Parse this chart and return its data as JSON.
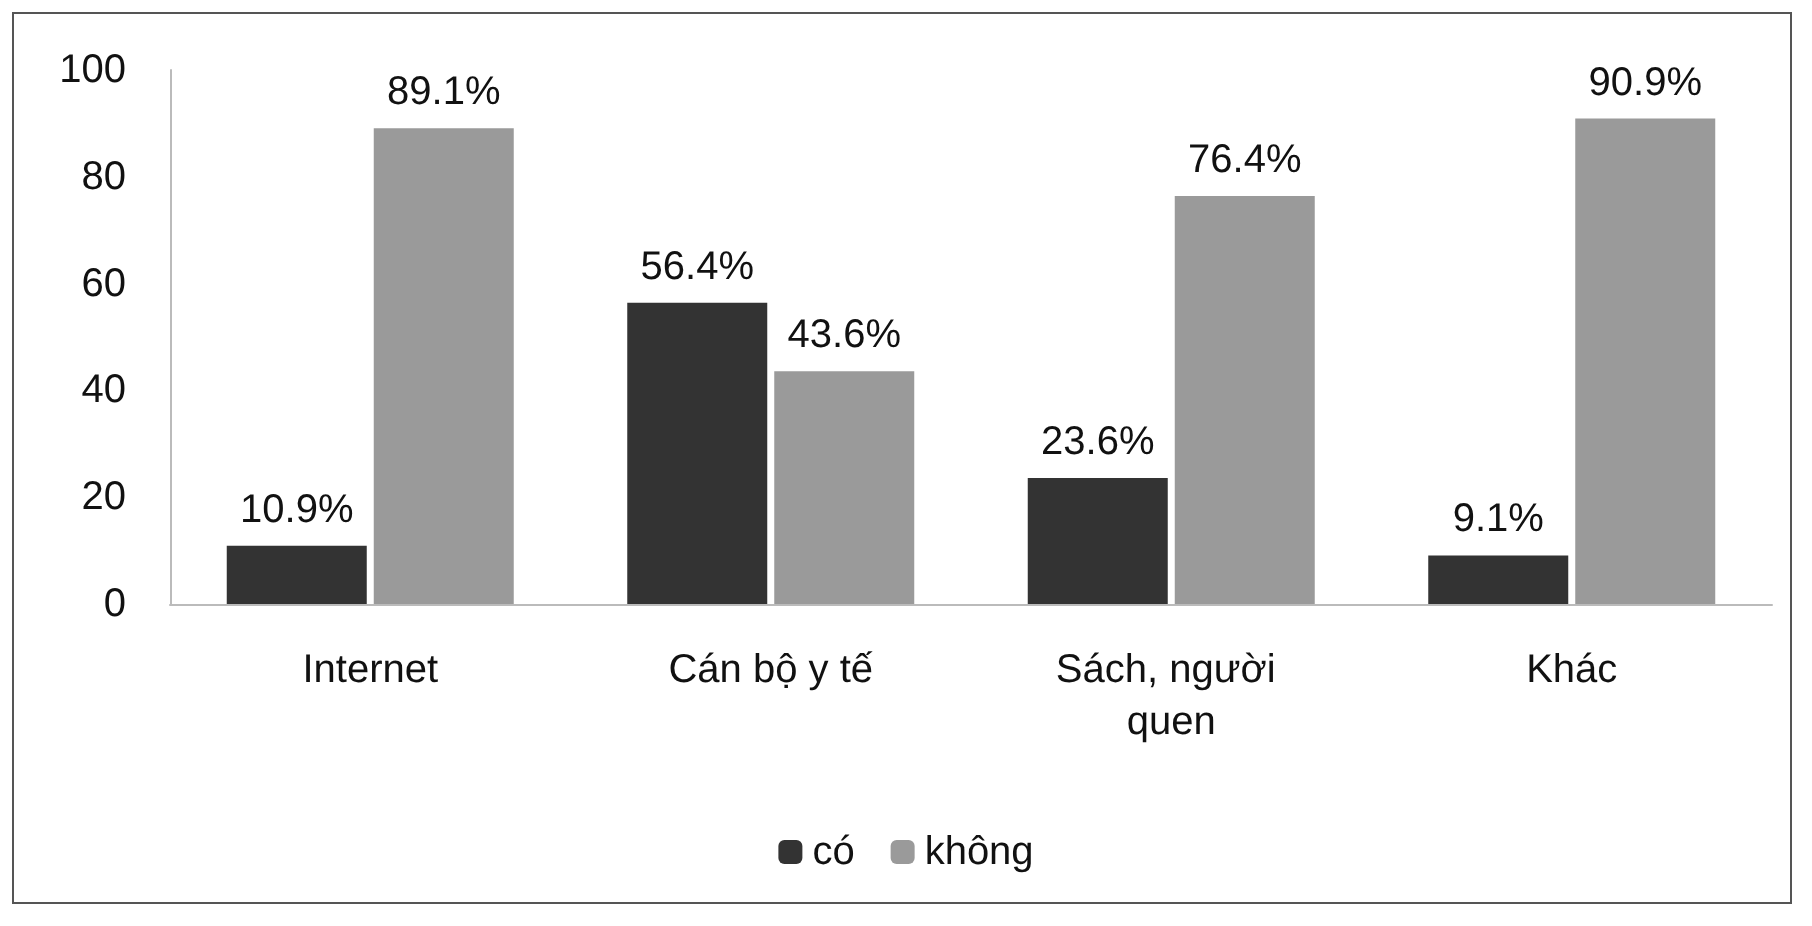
{
  "chart_data": {
    "type": "bar",
    "categories": [
      "Internet",
      "Cán bộ y tế",
      "Sách, người quen",
      "Khác"
    ],
    "series": [
      {
        "name": "có",
        "color": "#333333",
        "values": [
          10.9,
          56.4,
          23.6,
          9.1
        ],
        "value_labels": [
          "10.9%",
          "56.4%",
          "23.6%",
          "9.1%"
        ]
      },
      {
        "name": "không",
        "color": "#9a9a9a",
        "values": [
          89.1,
          43.6,
          76.4,
          90.9
        ],
        "value_labels": [
          "89.1%",
          "43.6%",
          "76.4%",
          "90.9%"
        ]
      }
    ],
    "ylim": [
      0,
      100
    ],
    "yticks": [
      0,
      20,
      40,
      60,
      80,
      100
    ],
    "grid": false,
    "legend": "bottom"
  }
}
